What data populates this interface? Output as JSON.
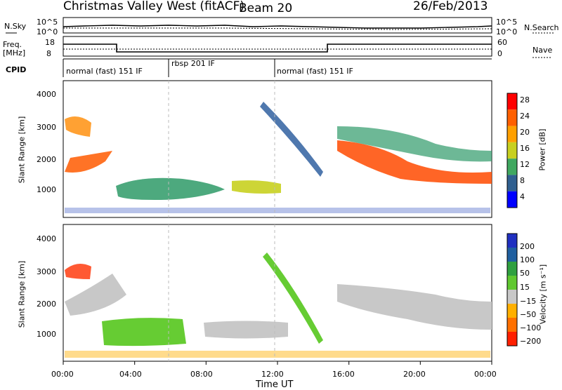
{
  "header": {
    "title": "Christmas Valley West (fitACF)",
    "beam": "Beam 20",
    "date": "26/Feb/2013"
  },
  "top_panels": {
    "nsky_label": "N.Sky",
    "nsearch_label": "N.Search",
    "nsky_ticks": [
      "10^5",
      "10^0"
    ],
    "freq_label": [
      "Freq.",
      "[MHz]"
    ],
    "freq_ticks": [
      "18",
      "8"
    ],
    "nave_label": "Nave",
    "nave_ticks": [
      "60",
      "0"
    ],
    "cpid_label": "CPID",
    "cpid_segments": [
      "normal (fast) 151 IF",
      "rbsp 201 IF",
      "normal (fast) 151 IF"
    ]
  },
  "chart_data": [
    {
      "type": "heatmap",
      "name": "power",
      "ylabel": "Slant Range [km]",
      "xlabel": "",
      "yticks": [
        "4000",
        "3000",
        "2000",
        "1000"
      ],
      "colorbar_label": "Power [dB]",
      "colorbar_ticks": [
        "28",
        "24",
        "20",
        "16",
        "12",
        "8",
        "4"
      ],
      "colorbar_colors": [
        "#ff0000",
        "#ff6000",
        "#ffa000",
        "#c8d020",
        "#40a860",
        "#306090",
        "#0000ff"
      ],
      "ylim": [
        200,
        4500
      ]
    },
    {
      "type": "heatmap",
      "name": "velocity",
      "ylabel": "Slant Range [km]",
      "xlabel": "Time UT",
      "yticks": [
        "4000",
        "3000",
        "2000",
        "1000"
      ],
      "colorbar_label": "Velocity [m s⁻¹]",
      "colorbar_ticks": [
        "200",
        "100",
        "50",
        "15",
        "−15",
        "−50",
        "−100",
        "−200"
      ],
      "colorbar_colors": [
        "#2030c0",
        "#2060a0",
        "#30a040",
        "#60c830",
        "#c8c8c8",
        "#ffb000",
        "#ff7000",
        "#ff2000"
      ],
      "xticks": [
        "00:00",
        "04:00",
        "08:00",
        "12:00",
        "16:00",
        "20:00",
        "00:00"
      ],
      "ylim": [
        200,
        4500
      ]
    }
  ]
}
